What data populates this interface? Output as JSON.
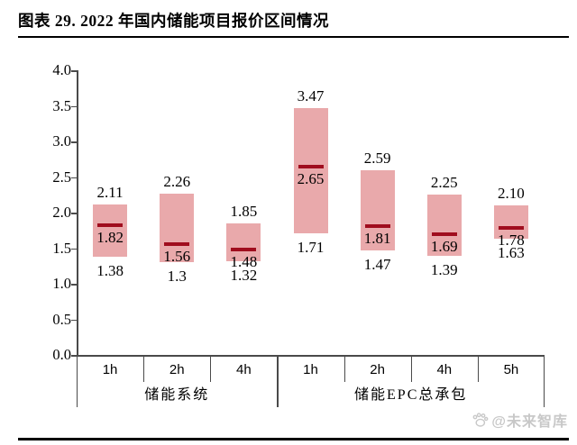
{
  "header": {
    "title": "图表 29. 2022 年国内储能项目报价区间情况"
  },
  "watermark": {
    "icon": "paw-icon",
    "text": "@未来智库"
  },
  "chart_data": {
    "type": "bar",
    "subtype": "floating-range-bar",
    "title": "2022 年国内储能项目报价区间情况",
    "ylabel": "",
    "xlabel": "",
    "ylim": [
      0.0,
      4.0
    ],
    "ytick_step": 0.5,
    "yticks": [
      "4.0",
      "3.5",
      "3.0",
      "2.5",
      "2.0",
      "1.5",
      "1.0",
      "0.5",
      "0.0"
    ],
    "grid": "off",
    "legend": "none",
    "groups": [
      {
        "label": "储能系统",
        "categories": [
          "1h",
          "2h",
          "4h"
        ]
      },
      {
        "label": "储能EPC总承包",
        "categories": [
          "1h",
          "2h",
          "4h",
          "5h"
        ]
      }
    ],
    "bars": [
      {
        "group": "储能系统",
        "category": "1h",
        "high": "2.11",
        "mid": "1.82",
        "low": "1.38"
      },
      {
        "group": "储能系统",
        "category": "2h",
        "high": "2.26",
        "mid": "1.56",
        "low": "1.3"
      },
      {
        "group": "储能系统",
        "category": "4h",
        "high": "1.85",
        "mid": "1.48",
        "low": "1.32"
      },
      {
        "group": "储能EPC总承包",
        "category": "1h",
        "high": "3.47",
        "mid": "2.65",
        "low": "1.71"
      },
      {
        "group": "储能EPC总承包",
        "category": "2h",
        "high": "2.59",
        "mid": "1.81",
        "low": "1.47"
      },
      {
        "group": "储能EPC总承包",
        "category": "4h",
        "high": "2.25",
        "mid": "1.69",
        "low": "1.39"
      },
      {
        "group": "储能EPC总承包",
        "category": "5h",
        "high": "2.10",
        "mid": "1.78",
        "low": "1.63"
      }
    ],
    "colors": {
      "bar_fill": "#e9a9ab",
      "median_line": "#a00d1e",
      "axis": "#4a4a4a",
      "text": "#000000"
    }
  }
}
